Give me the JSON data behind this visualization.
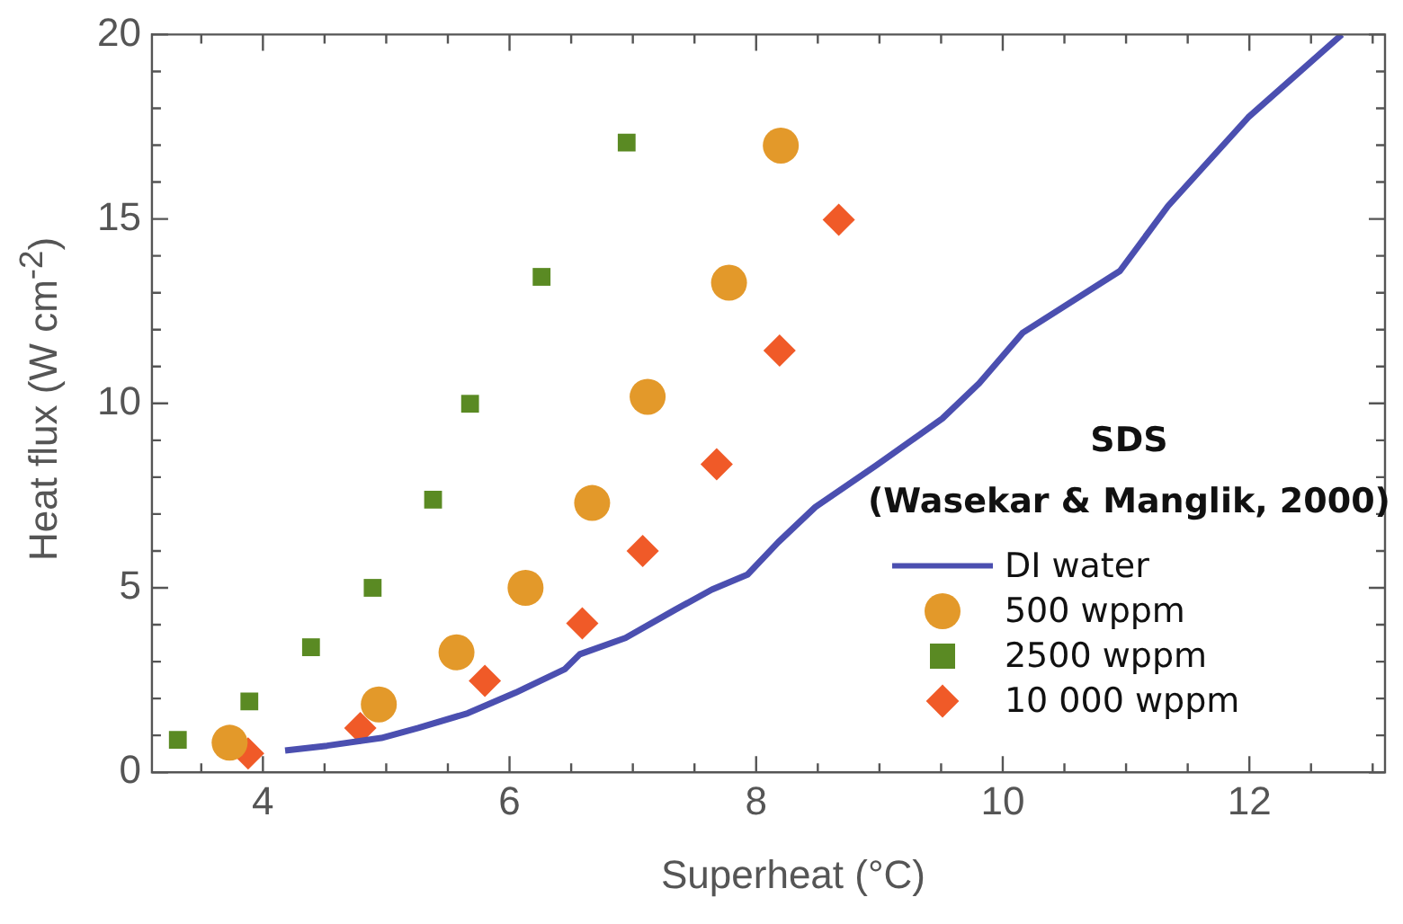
{
  "chart_data": {
    "type": "scatter",
    "xlabel": "Superheat (°C)",
    "ylabel": "Heat flux (W cm$^{-2}$)",
    "legend_title": "SDS",
    "annotations": [
      "(Wasekar & Manglik, 2000)"
    ],
    "legend": "bottom right",
    "grid": false,
    "xlim": [
      3.1,
      13.1
    ],
    "ylim": [
      0,
      20
    ],
    "xticks": [
      {
        "value": 3.5,
        "label": null
      },
      4,
      {
        "value": 4.5,
        "label": null
      },
      {
        "value": 5,
        "label": null
      },
      {
        "value": 5.5,
        "label": null
      },
      6,
      {
        "value": 6.5,
        "label": null
      },
      {
        "value": 7,
        "label": null
      },
      {
        "value": 7.5,
        "label": null
      },
      8,
      {
        "value": 8.5,
        "label": null
      },
      {
        "value": 9,
        "label": null
      },
      {
        "value": 9.5,
        "label": null
      },
      10,
      {
        "value": 10.5,
        "label": null
      },
      {
        "value": 11,
        "label": null
      },
      {
        "value": 11.5,
        "label": null
      },
      12,
      {
        "value": 12.5,
        "label": null
      },
      {
        "value": 13,
        "label": null
      }
    ],
    "yticks": [
      0,
      {
        "value": 1,
        "label": null
      },
      {
        "value": 2,
        "label": null
      },
      {
        "value": 3,
        "label": null
      },
      {
        "value": 4,
        "label": null
      },
      5,
      {
        "value": 6,
        "label": null
      },
      {
        "value": 7,
        "label": null
      },
      {
        "value": 8,
        "label": null
      },
      {
        "value": 9,
        "label": null
      },
      10,
      {
        "value": 11,
        "label": null
      },
      {
        "value": 12,
        "label": null
      },
      {
        "value": 13,
        "label": null
      },
      {
        "value": 14,
        "label": null
      },
      15,
      {
        "value": 16,
        "label": null
      },
      {
        "value": 17,
        "label": null
      },
      {
        "value": 18,
        "label": null
      },
      {
        "value": 19,
        "label": null
      },
      20
    ],
    "series": [
      {
        "name": "DI water",
        "type": "line",
        "marker": "none",
        "color": "#4b4fb0",
        "x": [
          4.18,
          4.52,
          4.96,
          5.26,
          5.66,
          6.05,
          6.45,
          6.57,
          6.94,
          7.34,
          7.64,
          7.93,
          8.18,
          8.48,
          8.97,
          9.51,
          9.81,
          10.16,
          10.95,
          11.34,
          11.99,
          12.75
        ],
        "values": [
          0.59,
          0.72,
          0.93,
          1.2,
          1.6,
          2.16,
          2.8,
          3.2,
          3.64,
          4.4,
          4.95,
          5.36,
          6.24,
          7.19,
          8.31,
          9.59,
          10.55,
          11.91,
          13.59,
          15.35,
          17.75,
          20
        ]
      },
      {
        "name": "500 wppm",
        "marker": "circle",
        "color": "#e3992a",
        "x": [
          3.73,
          4.94,
          5.57,
          6.13,
          6.67,
          7.12,
          7.78,
          8.2
        ],
        "values": [
          0.8,
          1.84,
          3.25,
          5.0,
          7.3,
          10.18,
          13.27,
          16.99
        ]
      },
      {
        "name": "2500 wppm",
        "marker": "square",
        "color": "#5a8a23",
        "x": [
          3.31,
          3.89,
          4.39,
          4.89,
          5.38,
          5.68,
          6.26,
          6.95
        ],
        "values": [
          0.88,
          1.92,
          3.39,
          5.0,
          7.39,
          9.99,
          13.43,
          17.07
        ]
      },
      {
        "name": "10 000 wppm",
        "marker": "diamond",
        "color": "#f05a28",
        "x": [
          3.88,
          4.79,
          5.8,
          6.59,
          7.08,
          7.68,
          8.19,
          8.67
        ],
        "values": [
          0.51,
          1.2,
          2.48,
          4.04,
          6.0,
          8.35,
          11.43,
          14.98
        ]
      }
    ]
  }
}
